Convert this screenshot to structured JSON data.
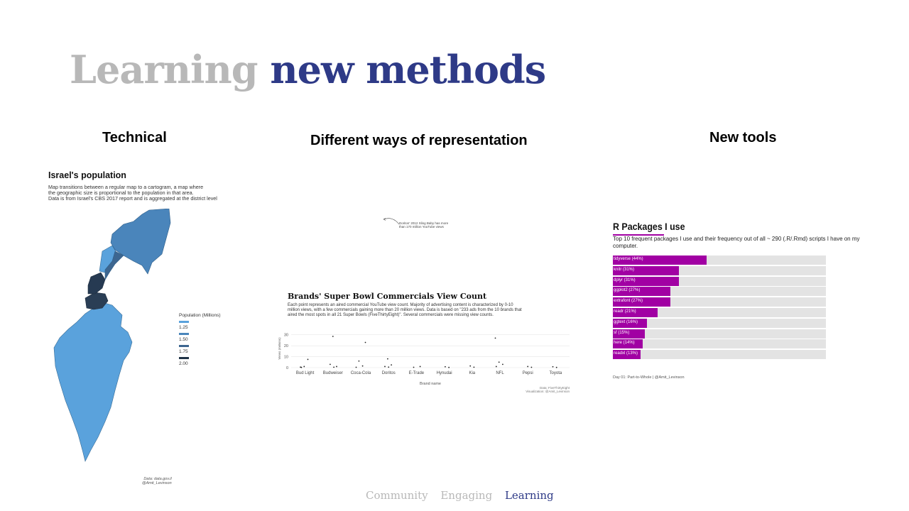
{
  "slide": {
    "title_part1": "Learning",
    "title_part2": "new methods",
    "colors": {
      "grey": "#b8b8b8",
      "blue": "#2e3a87"
    }
  },
  "columns": {
    "technical": "Technical",
    "representation": "Different ways of representation",
    "tools": "New tools"
  },
  "map_panel": {
    "title": "Israel's population",
    "description": [
      "Map transitions between a regular map to a cartogram, a map where",
      "the geographic size is proportional to the population in that area.",
      "Data is from Israel's CBS 2017 report and is aggregated at the district level"
    ],
    "legend_title": "Population (Millions)",
    "legend": [
      {
        "label": "1.25",
        "color": "#5aa2dc"
      },
      {
        "label": "1.50",
        "color": "#4a85bb"
      },
      {
        "label": "1.75",
        "color": "#3d6690"
      },
      {
        "label": "2.00",
        "color": "#1f3347"
      }
    ],
    "caption_line1": "Data: data.gov.il",
    "caption_line2": "@Amit_Levinson"
  },
  "superbowl_panel": {
    "annotation_line1": "Doritos' 2012 Sling Baby has more",
    "annotation_line2": "than 170 million YouTube views",
    "title": "Brands' Super Bowl Commercials View Count",
    "description": "Each point represents an aired commercial YouTube view count. Majority of advertising content is characterized by 0-10 million views, with a few commercials gaining more than 20 million views. Data is based on \"233 ads from the 10 brands that aired the most spots in all 21 Super Bowls (FiveThirtyEight)\". Several commercials were missing view counts.",
    "credit_line1": "Data: FiveThirtyEight",
    "credit_line2": "Visualization: @Amit_Levinson"
  },
  "chart_data": {
    "type": "scatter",
    "title": "Brands' Super Bowl Commercials View Count",
    "xlabel": "Brand name",
    "ylabel": "Views (millions)",
    "ylim": [
      0,
      35
    ],
    "yticks": [
      0,
      10,
      20,
      30
    ],
    "grid": true,
    "categories": [
      "Bud Light",
      "Budweiser",
      "Coca-Cola",
      "Doritos",
      "E-Trade",
      "Hynudai",
      "Kia",
      "NFL",
      "Pepsi",
      "Toyota"
    ],
    "series": [
      {
        "points": [
          {
            "x": "Bud Light",
            "y": 0.5
          },
          {
            "x": "Bud Light",
            "y": 1
          },
          {
            "x": "Bud Light",
            "y": 7.5
          },
          {
            "x": "Bud Light",
            "y": 0.2
          },
          {
            "x": "Budweiser",
            "y": 28.5
          },
          {
            "x": "Budweiser",
            "y": 1
          },
          {
            "x": "Budweiser",
            "y": 3
          },
          {
            "x": "Budweiser",
            "y": 0.4
          },
          {
            "x": "Coca-Cola",
            "y": 23
          },
          {
            "x": "Coca-Cola",
            "y": 6
          },
          {
            "x": "Coca-Cola",
            "y": 1.5
          },
          {
            "x": "Coca-Cola",
            "y": 0.3
          },
          {
            "x": "Doritos",
            "y": 8
          },
          {
            "x": "Doritos",
            "y": 2.5
          },
          {
            "x": "Doritos",
            "y": 1
          },
          {
            "x": "Doritos",
            "y": 0.5
          },
          {
            "x": "E-Trade",
            "y": 1
          },
          {
            "x": "E-Trade",
            "y": 0.3
          },
          {
            "x": "Hynudai",
            "y": 0.8
          },
          {
            "x": "Hynudai",
            "y": 0.2
          },
          {
            "x": "Kia",
            "y": 1.5
          },
          {
            "x": "Kia",
            "y": 0.4
          },
          {
            "x": "NFL",
            "y": 27
          },
          {
            "x": "NFL",
            "y": 5
          },
          {
            "x": "NFL",
            "y": 3
          },
          {
            "x": "NFL",
            "y": 1
          },
          {
            "x": "Pepsi",
            "y": 1
          },
          {
            "x": "Pepsi",
            "y": 0.3
          },
          {
            "x": "Toyota",
            "y": 0.8
          },
          {
            "x": "Toyota",
            "y": 0.2
          }
        ]
      }
    ]
  },
  "r_panel": {
    "title": "R Packages I use",
    "description": "Top 10 frequent packages I use and their frequency out of all ~ 290 (.R/.Rmd) scripts I have on my computer.",
    "bar_color": "#a100a3",
    "track_color": "#e3e3e3",
    "packages": [
      {
        "label": "tidyverse (44%)",
        "value": 44
      },
      {
        "label": "knitr (31%)",
        "value": 31
      },
      {
        "label": "dplyr (31%)",
        "value": 31
      },
      {
        "label": "ggplot2 (27%)",
        "value": 27
      },
      {
        "label": "extrafont (27%)",
        "value": 27
      },
      {
        "label": "readr (21%)",
        "value": 21
      },
      {
        "label": "ggtext (16%)",
        "value": 16
      },
      {
        "label": "sf (15%)",
        "value": 15
      },
      {
        "label": "here (14%)",
        "value": 14
      },
      {
        "label": "readxl (13%)",
        "value": 13
      }
    ],
    "footer": "Day 01: Part-to-Whole | @Amit_Levinson"
  },
  "footer_nav": {
    "items": [
      {
        "label": "Community",
        "active": false
      },
      {
        "label": "Engaging",
        "active": false
      },
      {
        "label": "Learning",
        "active": true
      }
    ]
  }
}
